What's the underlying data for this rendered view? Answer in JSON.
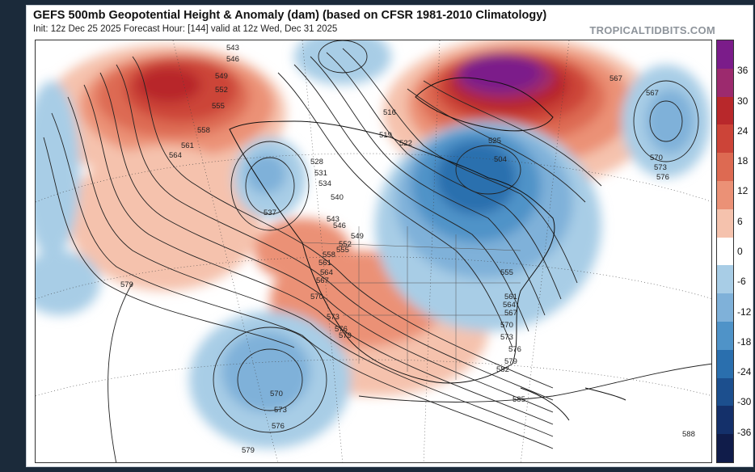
{
  "header": {
    "title": "GEFS 500mb Geopotential Height & Anomaly (dam) (based on CFSR 1981-2010 Climatology)",
    "subtitle": "Init: 12z Dec 25 2025   Forecast Hour: [144]   valid at 12z Wed, Dec 31 2025",
    "brand": "TROPICALTIDBITS.COM"
  },
  "colorbar": {
    "ticks": [
      "36",
      "30",
      "24",
      "18",
      "12",
      "6",
      "0",
      "-6",
      "-12",
      "-18",
      "-24",
      "-30",
      "-36"
    ],
    "colors": [
      "#7b1c8a",
      "#9c2a6e",
      "#b8282b",
      "#cc4438",
      "#dd6a52",
      "#eb9176",
      "#f5c2ad",
      "#ffffff",
      "#a8cde6",
      "#7fb1d9",
      "#4f93c8",
      "#2a6fae",
      "#1c4f8e",
      "#14306a",
      "#101c4a"
    ]
  },
  "map": {
    "contour_labels": [
      "543",
      "546",
      "549",
      "552",
      "555",
      "558",
      "561",
      "564",
      "567",
      "567",
      "570",
      "573",
      "576",
      "579",
      "579",
      "528",
      "531",
      "534",
      "537",
      "540",
      "543",
      "546",
      "549",
      "552",
      "555",
      "558",
      "561",
      "564",
      "567",
      "570",
      "573",
      "576",
      "579",
      "582",
      "585",
      "588",
      "570",
      "573",
      "576",
      "504",
      "516",
      "519",
      "522",
      "525",
      "555",
      "561",
      "564",
      "567",
      "570",
      "573",
      "576",
      "579"
    ],
    "anomaly_color_high": "#7b1c8a",
    "anomaly_color_low": "#2a6fae"
  }
}
